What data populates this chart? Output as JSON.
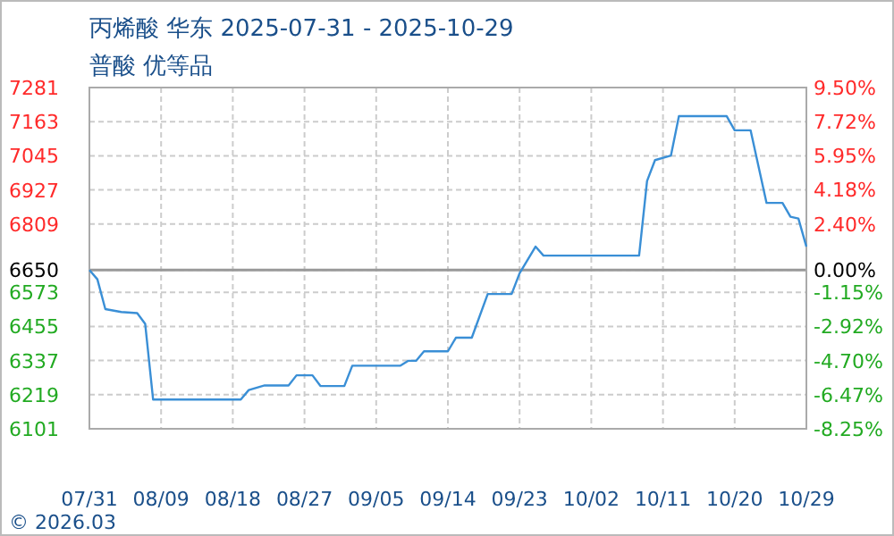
{
  "chart_data": {
    "type": "line",
    "title": "丙烯酸 华东 2025-07-31 - 2025-10-29",
    "subtitle": "普酸 优等品",
    "annotations": [
      "© 2026.03"
    ],
    "x": [
      "2025-07-31",
      "2025-08-01",
      "2025-08-02",
      "2025-08-04",
      "2025-08-06",
      "2025-08-07",
      "2025-08-08",
      "2025-08-19",
      "2025-08-20",
      "2025-08-22",
      "2025-08-25",
      "2025-08-26",
      "2025-08-28",
      "2025-08-29",
      "2025-09-01",
      "2025-09-02",
      "2025-09-08",
      "2025-09-09",
      "2025-09-10",
      "2025-09-11",
      "2025-09-14",
      "2025-09-15",
      "2025-09-17",
      "2025-09-19",
      "2025-09-22",
      "2025-09-23",
      "2025-09-25",
      "2025-09-26",
      "2025-10-08",
      "2025-10-09",
      "2025-10-10",
      "2025-10-12",
      "2025-10-13",
      "2025-10-19",
      "2025-10-20",
      "2025-10-22",
      "2025-10-24",
      "2025-10-26",
      "2025-10-27",
      "2025-10-28",
      "2025-10-29"
    ],
    "series": [
      {
        "color": "#3a8fd6",
        "values": [
          6650,
          6618,
          6515,
          6505,
          6501,
          6464,
          6202,
          6202,
          6235,
          6251,
          6251,
          6286,
          6286,
          6249,
          6249,
          6319,
          6319,
          6336,
          6336,
          6369,
          6369,
          6416,
          6416,
          6567,
          6567,
          6639,
          6731,
          6700,
          6700,
          6958,
          7030,
          7046,
          7182,
          7182,
          7133,
          7133,
          6882,
          6882,
          6834,
          6828,
          6731
        ]
      }
    ],
    "xlim": [
      "2025-07-31",
      "2025-10-29"
    ],
    "xticks": [
      {
        "value": "2025-07-31",
        "label": "07/31"
      },
      {
        "value": "2025-08-09",
        "label": "08/09"
      },
      {
        "value": "2025-08-18",
        "label": "08/18"
      },
      {
        "value": "2025-08-27",
        "label": "08/27"
      },
      {
        "value": "2025-09-05",
        "label": "09/05"
      },
      {
        "value": "2025-09-14",
        "label": "09/14"
      },
      {
        "value": "2025-09-23",
        "label": "09/23"
      },
      {
        "value": "2025-10-02",
        "label": "10/02"
      },
      {
        "value": "2025-10-11",
        "label": "10/11"
      },
      {
        "value": "2025-10-20",
        "label": "10/20"
      },
      {
        "value": "2025-10-29",
        "label": "10/29"
      }
    ],
    "ylim": [
      6101,
      7281
    ],
    "yticks": [
      6101,
      6219,
      6337,
      6455,
      6573,
      6650,
      6809,
      6927,
      7045,
      7163,
      7281
    ],
    "y2lim": [
      -8.25,
      9.5
    ],
    "y2ticks": [
      {
        "value": -8.25,
        "label": "-8.25%"
      },
      {
        "value": -6.47,
        "label": "-6.47%"
      },
      {
        "value": -4.7,
        "label": "-4.70%"
      },
      {
        "value": -2.92,
        "label": "-2.92%"
      },
      {
        "value": -1.15,
        "label": "-1.15%"
      },
      {
        "value": 0,
        "label": "0.00%"
      },
      {
        "value": 2.4,
        "label": "2.40%"
      },
      {
        "value": 4.18,
        "label": "4.18%"
      },
      {
        "value": 5.95,
        "label": "5.95%"
      },
      {
        "value": 7.72,
        "label": "7.72%"
      },
      {
        "value": 9.5,
        "label": "9.50%"
      }
    ],
    "ref_lines": [
      {
        "axis": "y",
        "value": 6650,
        "color": "#999999"
      }
    ],
    "grid": true,
    "marker": "none",
    "line_style": "solid"
  }
}
